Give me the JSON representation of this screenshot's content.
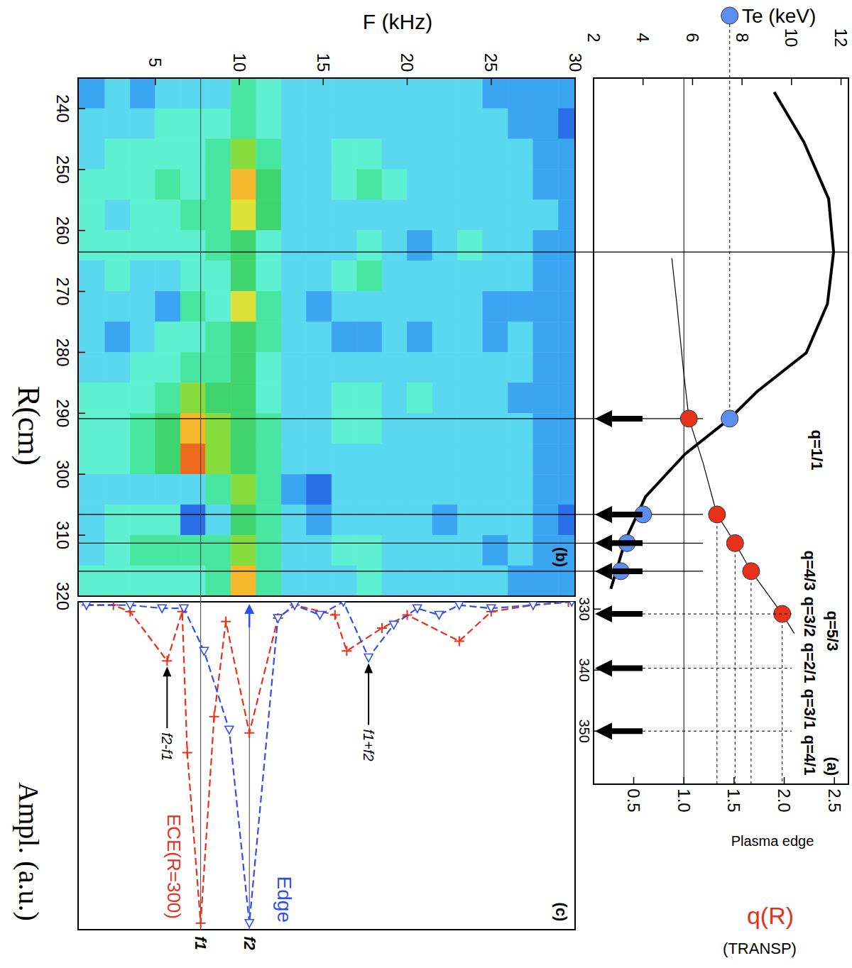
{
  "chart_data": [
    {
      "type": "line",
      "title": "(a)",
      "y_label": "Te (keV)",
      "y2_label": "q(R)",
      "subtitle": "(TRANSP)",
      "note": "Plasma edge",
      "xlim": [
        243,
        358.7
      ],
      "xticks": [
        330,
        340,
        350
      ],
      "ylim": [
        2,
        12.3
      ],
      "yticks": [
        2,
        4,
        6,
        8,
        10,
        12
      ],
      "y2lim": [
        0.1,
        2.64
      ],
      "y2ticks": [
        0.5,
        {
          "value": 1,
          "label": "1.0"
        },
        1.5,
        {
          "value": 2,
          "label": "2.0"
        },
        2.5
      ],
      "series": [
        {
          "type": "line",
          "color": "#000000",
          "x": [
            245.3,
            253.5,
            262.8,
            271.5,
            280,
            288,
            294.4,
            298.8,
            304.6,
            311.6,
            318.6,
            326.7
          ],
          "values": [
            9.3,
            10.5,
            11.5,
            11.7,
            11.45,
            10.6,
            8.6,
            7.5,
            5.7,
            4.1,
            3.3,
            2.7
          ]
        },
        {
          "type": "scatter",
          "marker": "circle",
          "color": "#5b8ef0",
          "x": [
            298.8,
            314.5,
            319.2,
            323.8
          ],
          "values": [
            7.5,
            4.0,
            3.35,
            3.1
          ]
        },
        {
          "type": "line",
          "axis": "y2",
          "color": "#000000",
          "x": [
            272.5,
            280,
            290,
            298.8,
            306,
            314.5,
            319.2,
            323.8,
            330.8,
            334
          ],
          "values": [
            0.88,
            0.93,
            0.99,
            1.05,
            1.19,
            1.33,
            1.51,
            1.67,
            1.98,
            2.1
          ]
        },
        {
          "type": "scatter",
          "axis": "y2",
          "marker": "circle",
          "color": "#e8311a",
          "x": [
            298.8,
            314.5,
            319.2,
            323.8,
            330.8
          ],
          "values": [
            1.05,
            1.33,
            1.51,
            1.67,
            1.98
          ]
        }
      ],
      "vlines": [
        271.5,
        298.8,
        314.5,
        319.2,
        323.8
      ],
      "y2_lines": [
        1
      ],
      "annotations": [
        {
          "x": 298.8,
          "label": "q=1/1"
        },
        {
          "x": 314.5,
          "label": "q=4/3"
        },
        {
          "x": 319.2,
          "label": "q=3/2"
        },
        {
          "x": 323.8,
          "label": "q=5/3"
        },
        {
          "x": 330.8,
          "label": "q=2/1"
        },
        {
          "x": 339.7,
          "label": "q=3/1"
        },
        {
          "x": 350,
          "label": "q=4/1"
        }
      ]
    },
    {
      "type": "heatmap",
      "title": "(b)",
      "x_label": "R(cm)",
      "y_label": "F (kHz)",
      "xlim": [
        235,
        320
      ],
      "xticks": [
        240,
        250,
        260,
        270,
        280,
        290,
        300,
        310,
        320
      ],
      "ylim": [
        0.4,
        30
      ],
      "yticks": [
        5,
        10,
        15,
        20,
        25,
        30
      ],
      "x_edges": [
        235,
        240,
        245,
        250,
        255,
        260,
        265,
        270,
        275,
        280,
        285,
        290,
        295,
        300,
        305,
        310,
        315,
        320
      ],
      "y_edges": [
        0.4,
        2,
        3.5,
        5,
        6.5,
        8,
        9.5,
        11,
        12.5,
        14,
        15.5,
        17,
        18.5,
        20,
        21.5,
        23,
        24.5,
        26,
        27.5,
        29,
        30
      ],
      "zlim": [
        0,
        10
      ],
      "cells": [
        [
          2,
          3,
          3,
          4,
          4,
          4,
          3,
          3,
          3,
          3,
          4,
          4,
          4,
          3,
          3,
          3,
          4
        ],
        [
          3,
          3,
          4,
          4,
          3,
          4,
          4,
          3,
          2,
          3,
          4,
          4,
          4,
          3,
          4,
          4,
          4
        ],
        [
          2,
          3,
          4,
          4,
          4,
          4,
          3,
          3,
          3,
          4,
          4,
          5,
          5,
          3,
          4,
          5,
          4
        ],
        [
          3,
          4,
          4,
          5,
          4,
          4,
          3,
          2,
          4,
          4,
          5,
          6,
          6,
          3,
          4,
          5,
          4
        ],
        [
          3,
          4,
          4,
          4,
          5,
          4,
          4,
          5,
          4,
          5,
          7,
          9,
          10,
          3,
          1,
          5,
          4
        ],
        [
          3,
          4,
          5,
          5,
          5,
          5,
          4,
          4,
          5,
          5,
          6,
          7,
          7,
          5,
          3,
          5,
          5
        ],
        [
          5,
          5,
          7,
          9,
          8,
          6,
          6,
          8,
          6,
          6,
          6,
          6,
          6,
          7,
          6,
          7,
          9
        ],
        [
          4,
          4,
          5,
          6,
          6,
          4,
          4,
          5,
          5,
          4,
          4,
          5,
          5,
          5,
          5,
          5,
          5
        ],
        [
          3,
          3,
          3,
          3,
          3,
          3,
          3,
          3,
          3,
          3,
          3,
          3,
          3,
          2,
          3,
          3,
          3
        ],
        [
          3,
          3,
          3,
          3,
          3,
          3,
          3,
          2,
          3,
          3,
          3,
          3,
          3,
          1,
          2,
          3,
          3
        ],
        [
          3,
          3,
          4,
          4,
          3,
          3,
          4,
          3,
          2,
          3,
          4,
          4,
          3,
          3,
          3,
          4,
          3
        ],
        [
          3,
          3,
          4,
          5,
          3,
          4,
          5,
          3,
          2,
          3,
          4,
          4,
          3,
          3,
          3,
          4,
          4
        ],
        [
          3,
          3,
          3,
          4,
          3,
          3,
          3,
          3,
          3,
          3,
          3,
          3,
          3,
          3,
          3,
          3,
          3
        ],
        [
          3,
          3,
          3,
          3,
          3,
          2,
          3,
          3,
          2,
          3,
          4,
          3,
          3,
          3,
          3,
          3,
          3
        ],
        [
          3,
          3,
          3,
          3,
          3,
          3,
          3,
          3,
          3,
          3,
          3,
          3,
          3,
          3,
          2,
          3,
          3
        ],
        [
          3,
          3,
          3,
          3,
          3,
          4,
          3,
          3,
          3,
          3,
          3,
          3,
          3,
          3,
          3,
          3,
          3
        ],
        [
          2,
          3,
          3,
          3,
          3,
          3,
          3,
          2,
          2,
          3,
          3,
          3,
          3,
          3,
          3,
          2,
          3
        ],
        [
          2,
          2,
          3,
          3,
          3,
          3,
          3,
          2,
          3,
          3,
          2,
          3,
          3,
          3,
          3,
          3,
          2
        ],
        [
          2,
          2,
          2,
          2,
          3,
          2,
          2,
          2,
          2,
          2,
          2,
          2,
          2,
          2,
          2,
          2,
          2
        ],
        [
          2,
          1,
          2,
          2,
          2,
          2,
          2,
          2,
          2,
          2,
          2,
          2,
          2,
          2,
          1,
          2,
          2
        ]
      ]
    },
    {
      "type": "line",
      "title": "(c)",
      "y_label": "Ampl. (a.u.)",
      "xlim": [
        0.4,
        30
      ],
      "ylim": [
        0,
        1
      ],
      "tick_labels": false,
      "series": [
        {
          "name": "ECE(R=300)",
          "color": "#e8311a",
          "marker": "plus",
          "line_style": "dashed",
          "x": [
            0.9,
            2.5,
            3.5,
            5.7,
            6.6,
            6.9,
            7.7,
            8.5,
            9.2,
            10.6,
            12.3,
            13.3,
            15.7,
            16.4,
            18.5,
            20.0,
            23.1,
            25.0,
            27.5,
            29.6
          ],
          "values": [
            0.01,
            0.01,
            0.03,
            0.18,
            0.03,
            0.46,
            0.98,
            0.35,
            0.06,
            0.4,
            0.05,
            0.01,
            0.04,
            0.15,
            0.08,
            0.04,
            0.12,
            0.03,
            0.01,
            0.0
          ]
        },
        {
          "name": "Edge",
          "color": "#2f4ff0",
          "marker": "triangle",
          "line_style": "dashed",
          "x": [
            0.9,
            3.5,
            5.4,
            6.7,
            7.9,
            9.4,
            10.6,
            12.3,
            13.3,
            14.8,
            16.2,
            17.7,
            19.2,
            20.6,
            21.9,
            23.1,
            25.0,
            27.5,
            29.8
          ],
          "values": [
            0.01,
            0.01,
            0.02,
            0.02,
            0.15,
            0.39,
            0.98,
            0.05,
            0.01,
            0.04,
            0.0,
            0.17,
            0.07,
            0.02,
            0.04,
            0.01,
            0.02,
            0.01,
            0.0
          ]
        }
      ],
      "annotations": [
        {
          "x": 5.7,
          "y": 0.18,
          "label": "f2-f1"
        },
        {
          "x": 17.7,
          "y": 0.17,
          "label": "f1+f2"
        },
        {
          "x": 7.7,
          "label": "f1"
        },
        {
          "x": 10.6,
          "label": "f2"
        }
      ]
    }
  ]
}
